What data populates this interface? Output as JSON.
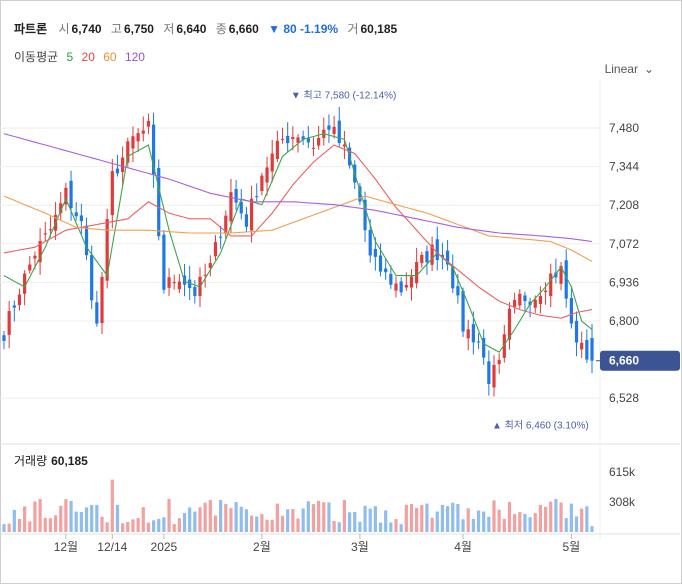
{
  "header": {
    "name": "파트론",
    "open_label": "시",
    "open": "6,740",
    "high_label": "고",
    "high": "6,750",
    "low_label": "저",
    "low": "6,640",
    "close_label": "종",
    "close": "6,660",
    "change": "▼ 80 -1.19%",
    "volume_label": "거",
    "volume": "60,185"
  },
  "ma_legend": {
    "label": "이동평균",
    "items": [
      {
        "text": "5",
        "color": "#2e9e3c"
      },
      {
        "text": "20",
        "color": "#e64545"
      },
      {
        "text": "60",
        "color": "#e8922e"
      },
      {
        "text": "120",
        "color": "#9b4fd6"
      }
    ]
  },
  "scale_mode": "Linear",
  "volume_label": "거래량",
  "volume_value": "60,185",
  "chart_data": {
    "type": "candlestick",
    "price_axis": {
      "ticks": [
        "7,480",
        "7,344",
        "7,208",
        "7,072",
        "6,936",
        "6,800",
        "6,528"
      ],
      "tick_values": [
        7480,
        7344,
        7208,
        7072,
        6936,
        6800,
        6528
      ]
    },
    "volume_axis": {
      "ticks": [
        "615k",
        "308k"
      ],
      "tick_values": [
        615000,
        308000
      ]
    },
    "x_ticks": [
      {
        "label": "12월",
        "index": 12
      },
      {
        "label": "12/14",
        "index": 21
      },
      {
        "label": "2025",
        "index": 31
      },
      {
        "label": "2월",
        "index": 50
      },
      {
        "label": "3월",
        "index": 69
      },
      {
        "label": "4월",
        "index": 89
      },
      {
        "label": "5월",
        "index": 110
      }
    ],
    "annotations": [
      {
        "text": "▼ 최고 7,580 (-12.14%)",
        "value": 7580,
        "index": 56
      },
      {
        "text": "▲ 최저 6,460 (3.10%)",
        "value": 6460,
        "index": 95
      }
    ],
    "last_price": {
      "text": "6,660",
      "value": 6660
    },
    "anchors_close": [
      [
        0,
        6760
      ],
      [
        3,
        6910
      ],
      [
        6,
        7040
      ],
      [
        9,
        7120
      ],
      [
        12,
        7250
      ],
      [
        15,
        7140
      ],
      [
        18,
        6780
      ],
      [
        21,
        7310
      ],
      [
        25,
        7440
      ],
      [
        28,
        7480
      ],
      [
        31,
        6920
      ],
      [
        34,
        6960
      ],
      [
        37,
        6900
      ],
      [
        40,
        6990
      ],
      [
        44,
        7250
      ],
      [
        47,
        7150
      ],
      [
        50,
        7320
      ],
      [
        54,
        7440
      ],
      [
        57,
        7460
      ],
      [
        60,
        7420
      ],
      [
        63,
        7490
      ],
      [
        66,
        7400
      ],
      [
        69,
        7220
      ],
      [
        71,
        7020
      ],
      [
        74,
        6960
      ],
      [
        77,
        6910
      ],
      [
        80,
        6990
      ],
      [
        83,
        7050
      ],
      [
        86,
        7020
      ],
      [
        89,
        6780
      ],
      [
        92,
        6730
      ],
      [
        94,
        6600
      ],
      [
        96,
        6640
      ],
      [
        98,
        6820
      ],
      [
        100,
        6880
      ],
      [
        103,
        6890
      ],
      [
        106,
        6960
      ],
      [
        108,
        6980
      ],
      [
        110,
        6780
      ],
      [
        112,
        6700
      ],
      [
        114,
        6660
      ]
    ],
    "ma_anchors": {
      "ma5": [
        [
          0,
          6960
        ],
        [
          4,
          6920
        ],
        [
          8,
          7060
        ],
        [
          12,
          7230
        ],
        [
          16,
          7060
        ],
        [
          20,
          6960
        ],
        [
          24,
          7380
        ],
        [
          28,
          7420
        ],
        [
          32,
          7120
        ],
        [
          35,
          6940
        ],
        [
          38,
          6920
        ],
        [
          42,
          7040
        ],
        [
          46,
          7230
        ],
        [
          50,
          7210
        ],
        [
          54,
          7380
        ],
        [
          58,
          7440
        ],
        [
          62,
          7460
        ],
        [
          66,
          7440
        ],
        [
          70,
          7200
        ],
        [
          72,
          7080
        ],
        [
          76,
          6960
        ],
        [
          80,
          6960
        ],
        [
          84,
          7040
        ],
        [
          87,
          6990
        ],
        [
          90,
          6860
        ],
        [
          93,
          6720
        ],
        [
          96,
          6690
        ],
        [
          99,
          6770
        ],
        [
          102,
          6860
        ],
        [
          105,
          6920
        ],
        [
          108,
          6990
        ],
        [
          110,
          6920
        ],
        [
          112,
          6800
        ],
        [
          114,
          6770
        ]
      ],
      "ma20": [
        [
          0,
          7040
        ],
        [
          6,
          7060
        ],
        [
          12,
          7120
        ],
        [
          18,
          7140
        ],
        [
          24,
          7160
        ],
        [
          28,
          7220
        ],
        [
          32,
          7180
        ],
        [
          36,
          7160
        ],
        [
          40,
          7160
        ],
        [
          44,
          7100
        ],
        [
          48,
          7100
        ],
        [
          52,
          7180
        ],
        [
          56,
          7280
        ],
        [
          60,
          7360
        ],
        [
          64,
          7420
        ],
        [
          68,
          7390
        ],
        [
          72,
          7300
        ],
        [
          76,
          7200
        ],
        [
          80,
          7120
        ],
        [
          84,
          7040
        ],
        [
          88,
          6980
        ],
        [
          92,
          6920
        ],
        [
          96,
          6870
        ],
        [
          100,
          6840
        ],
        [
          104,
          6820
        ],
        [
          108,
          6810
        ],
        [
          111,
          6830
        ],
        [
          114,
          6840
        ]
      ],
      "ma60": [
        [
          0,
          7240
        ],
        [
          8,
          7180
        ],
        [
          14,
          7130
        ],
        [
          20,
          7120
        ],
        [
          28,
          7120
        ],
        [
          36,
          7110
        ],
        [
          44,
          7110
        ],
        [
          52,
          7120
        ],
        [
          58,
          7160
        ],
        [
          64,
          7200
        ],
        [
          70,
          7240
        ],
        [
          76,
          7210
        ],
        [
          82,
          7180
        ],
        [
          88,
          7140
        ],
        [
          94,
          7100
        ],
        [
          100,
          7090
        ],
        [
          106,
          7080
        ],
        [
          110,
          7050
        ],
        [
          114,
          7010
        ]
      ],
      "ma120": [
        [
          0,
          7460
        ],
        [
          8,
          7420
        ],
        [
          16,
          7380
        ],
        [
          24,
          7340
        ],
        [
          32,
          7300
        ],
        [
          40,
          7250
        ],
        [
          48,
          7220
        ],
        [
          56,
          7220
        ],
        [
          64,
          7210
        ],
        [
          72,
          7190
        ],
        [
          80,
          7160
        ],
        [
          88,
          7130
        ],
        [
          96,
          7110
        ],
        [
          104,
          7100
        ],
        [
          110,
          7090
        ],
        [
          114,
          7080
        ]
      ]
    }
  }
}
